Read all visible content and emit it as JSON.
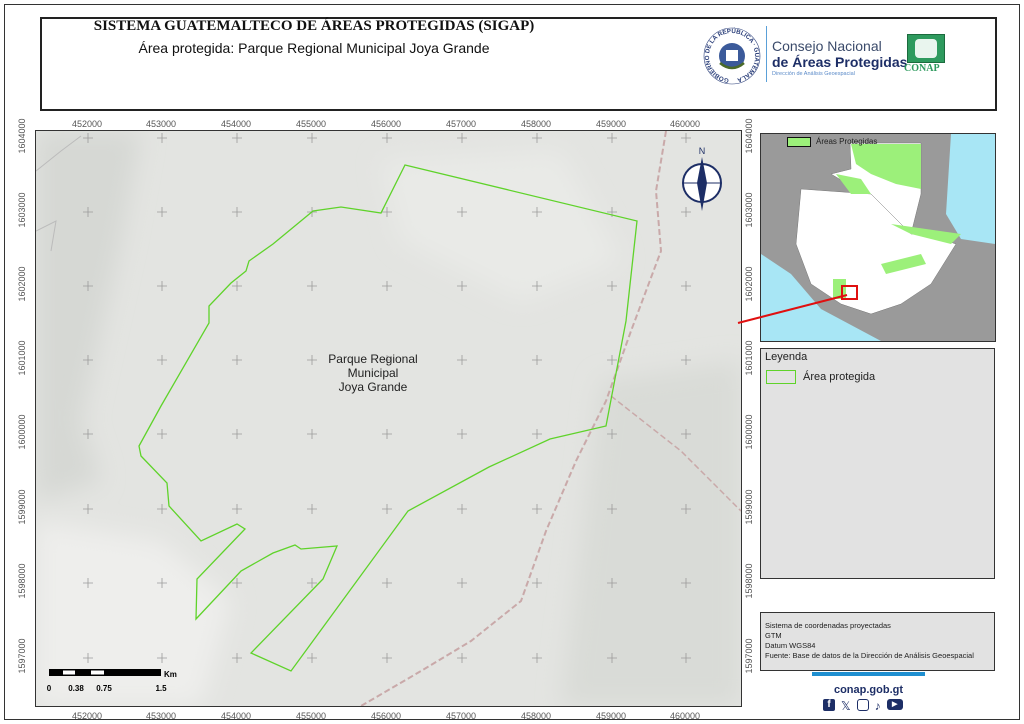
{
  "header": {
    "title": "SISTEMA GUATEMALTECO DE ÁREAS PROTEGIDAS  (SIGAP)",
    "subtitle": "Área protegida: Parque Regional Municipal Joya Grande",
    "gov_seal_text": "GOBIERNO DE LA REPÚBLICA · GUATEMALA",
    "council_line1": "Consejo Nacional",
    "council_line2": "de Áreas Protegidas",
    "council_line3": "Dirección de Análisis Geoespacial",
    "conap_logo_text": "CONAP"
  },
  "map": {
    "area_label": [
      "Parque Regional",
      "Municipal",
      "Joya Grande"
    ],
    "x_ticks": [
      "452000",
      "453000",
      "454000",
      "455000",
      "456000",
      "457000",
      "458000",
      "459000",
      "460000"
    ],
    "y_ticks": [
      "1604000",
      "1603000",
      "1602000",
      "1601000",
      "1600000",
      "1599000",
      "1598000",
      "1597000"
    ],
    "north_label": "N",
    "scale": {
      "labels": [
        "0",
        "0.38",
        "0.75",
        "1.5"
      ],
      "unit": "Km"
    },
    "colors": {
      "boundary": "#5fd32a",
      "background": "#e3e4e1",
      "road": "#c9a9a9"
    }
  },
  "inset": {
    "legend_label": "Áreas Protegidas",
    "colors": {
      "protected": "#9cf07a",
      "water": "#a8e6f5",
      "land": "#9a9a9a",
      "country": "#ffffff",
      "highlight": "#e01010"
    }
  },
  "legend": {
    "title": "Leyenda",
    "items": [
      {
        "label": "Área protegida",
        "color": "#5fd32a"
      }
    ]
  },
  "info": {
    "lines": [
      "Sistema de coordenadas proyectadas",
      "GTM",
      "Datum WGS84",
      "Fuente: Base de datos de la Dirección de Análisis Geoespacial"
    ]
  },
  "footer": {
    "website": "conap.gob.gt",
    "social_icons": [
      "facebook-icon",
      "x-icon",
      "instagram-icon",
      "tiktok-icon",
      "youtube-icon"
    ],
    "accent": "#1f8fd0"
  }
}
